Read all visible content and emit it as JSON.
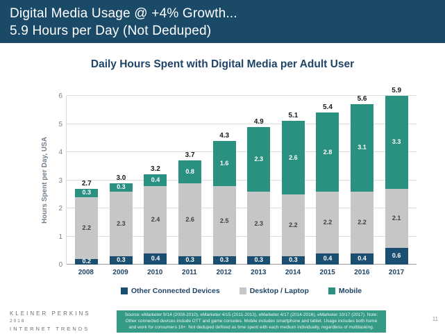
{
  "header": {
    "line1": "Digital Media Usage @ +4% Growth...",
    "line2": "5.9 Hours per Day (Not Deduped)"
  },
  "chart_title": "Daily Hours Spent with Digital Media per Adult User",
  "chart_data": {
    "type": "bar",
    "stacked": true,
    "title": "Daily Hours Spent with Digital Media per Adult User",
    "categories": [
      "2008",
      "2009",
      "2010",
      "2011",
      "2012",
      "2013",
      "2014",
      "2015",
      "2016",
      "2017"
    ],
    "series": [
      {
        "name": "Other Connected Devices",
        "color": "#1b4f72",
        "label_color": "#ffffff",
        "values": [
          0.2,
          0.3,
          0.4,
          0.3,
          0.3,
          0.3,
          0.3,
          0.4,
          0.4,
          0.6
        ]
      },
      {
        "name": "Desktop / Laptop",
        "color": "#c6c6c6",
        "label_color": "#404040",
        "values": [
          2.2,
          2.3,
          2.4,
          2.6,
          2.5,
          2.3,
          2.2,
          2.2,
          2.2,
          2.1
        ]
      },
      {
        "name": "Mobile",
        "color": "#2a9181",
        "label_color": "#ffffff",
        "values": [
          0.3,
          0.3,
          0.4,
          0.8,
          1.6,
          2.3,
          2.6,
          2.8,
          3.1,
          3.3
        ]
      }
    ],
    "totals": [
      "2.7",
      "3.0",
      "3.2",
      "3.7",
      "4.3",
      "4.9",
      "5.1",
      "5.4",
      "5.6",
      "5.9"
    ],
    "xlabel": "",
    "ylabel": "Hours Spent per Day, USA",
    "ylim": [
      0,
      6
    ],
    "yticks": [
      0,
      1,
      2,
      3,
      4,
      5,
      6
    ],
    "grid": true,
    "legend_position": "bottom"
  },
  "footer": {
    "brand": [
      "KLEINER PERKINS",
      "2018",
      "INTERNET TRENDS"
    ],
    "source": "Source: eMarketer 9/14 (2008-2010), eMarketer 4/15 (2011-2013), eMarketer 4/17 (2014-2016), eMarketer 10/17 (2017). Note: Other connected devices include OTT and game consoles. Mobile includes smartphone and tablet. Usage includes both home and work for consumers 18+. Not deduped defined as time spent with each medium individually, regardless of multitasking.",
    "page_number": "11"
  }
}
